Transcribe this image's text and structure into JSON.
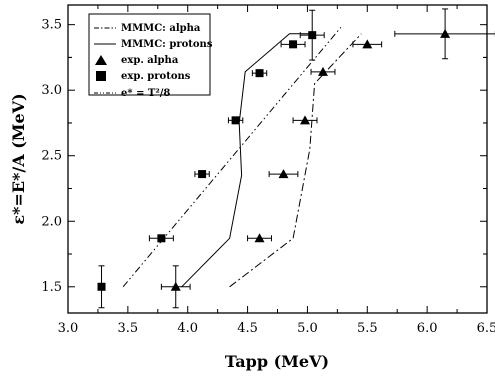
{
  "chart_data": {
    "type": "scatter",
    "title": "",
    "xlabel": "Tapp (MeV)",
    "ylabel": "ε*=E*/A (MeV)",
    "xlim": [
      3.0,
      6.5
    ],
    "ylim": [
      1.3,
      3.65
    ],
    "x_ticks": [
      "3.0",
      "3.5",
      "4.0",
      "4.5",
      "5.0",
      "5.5",
      "6.0",
      "6.5"
    ],
    "y_ticks": [
      "1.5",
      "2.0",
      "2.5",
      "3.0",
      "3.5"
    ],
    "grid": false,
    "legend_position": "top-left",
    "series": [
      {
        "name": "MMMC: alpha",
        "kind": "line",
        "style": "dash-dot",
        "x": [
          4.35,
          4.88,
          5.02,
          5.06,
          5.45
        ],
        "y": [
          1.5,
          1.87,
          2.55,
          3.05,
          3.43
        ]
      },
      {
        "name": "MMMC: protons",
        "kind": "line",
        "style": "solid",
        "x": [
          3.95,
          4.35,
          4.45,
          4.43,
          4.48,
          4.85,
          5.07
        ],
        "y": [
          1.5,
          1.87,
          2.35,
          2.75,
          3.14,
          3.43,
          3.43
        ]
      },
      {
        "name": "exp. alpha",
        "kind": "scatter",
        "marker": "triangle",
        "x": [
          3.9,
          4.6,
          4.8,
          4.98,
          5.13,
          5.5,
          6.15
        ],
        "y": [
          1.5,
          1.87,
          2.36,
          2.77,
          3.14,
          3.35,
          3.43
        ],
        "x_err": [
          0.12,
          0.1,
          0.12,
          0.1,
          0.1,
          0.12,
          0.42
        ],
        "y_err": [
          0.16,
          0,
          0,
          0,
          0,
          0,
          0.19
        ]
      },
      {
        "name": "exp. protons",
        "kind": "scatter",
        "marker": "square",
        "x": [
          3.28,
          3.78,
          4.12,
          4.4,
          4.6,
          4.88,
          5.04
        ],
        "y": [
          1.5,
          1.87,
          2.36,
          2.77,
          3.13,
          3.35,
          3.42
        ],
        "x_err": [
          0,
          0.1,
          0.06,
          0.06,
          0.06,
          0.1,
          0.1
        ],
        "y_err": [
          0.16,
          0,
          0,
          0,
          0,
          0,
          0.19
        ]
      },
      {
        "name": "e* = T²/8",
        "kind": "line",
        "style": "dash-dot-dot",
        "x": [
          3.46,
          5.28
        ],
        "y": [
          1.5,
          3.48
        ]
      }
    ]
  }
}
